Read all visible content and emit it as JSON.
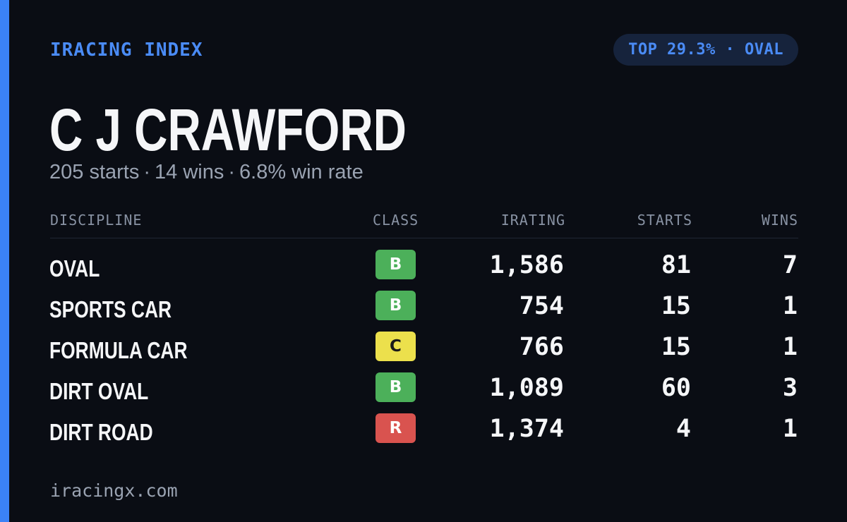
{
  "brand": "IRACING INDEX",
  "badge": "TOP 29.3% · OVAL",
  "driver_name": "C J CRAWFORD",
  "summary": {
    "starts": "205 starts",
    "wins": "14 wins",
    "win_rate": "6.8% win rate",
    "separator": "·"
  },
  "table": {
    "headers": {
      "discipline": "DISCIPLINE",
      "class": "CLASS",
      "irating": "IRATING",
      "starts": "STARTS",
      "wins": "WINS"
    },
    "rows": [
      {
        "discipline": "OVAL",
        "class": "B",
        "class_color": "#4cb05a",
        "class_text_color": "#ffffff",
        "irating": "1,586",
        "starts": "81",
        "wins": "7"
      },
      {
        "discipline": "SPORTS CAR",
        "class": "B",
        "class_color": "#4cb05a",
        "class_text_color": "#ffffff",
        "irating": "754",
        "starts": "15",
        "wins": "1"
      },
      {
        "discipline": "FORMULA CAR",
        "class": "C",
        "class_color": "#ece04c",
        "class_text_color": "#1a1a1a",
        "irating": "766",
        "starts": "15",
        "wins": "1"
      },
      {
        "discipline": "DIRT OVAL",
        "class": "B",
        "class_color": "#4cb05a",
        "class_text_color": "#ffffff",
        "irating": "1,089",
        "starts": "60",
        "wins": "3"
      },
      {
        "discipline": "DIRT ROAD",
        "class": "R",
        "class_color": "#d9534f",
        "class_text_color": "#ffffff",
        "irating": "1,374",
        "starts": "4",
        "wins": "1"
      }
    ]
  },
  "footer": "iracingx.com",
  "colors": {
    "accent": "#3b82f6",
    "background": "#0a0d14",
    "pill_background": "#16233c"
  }
}
